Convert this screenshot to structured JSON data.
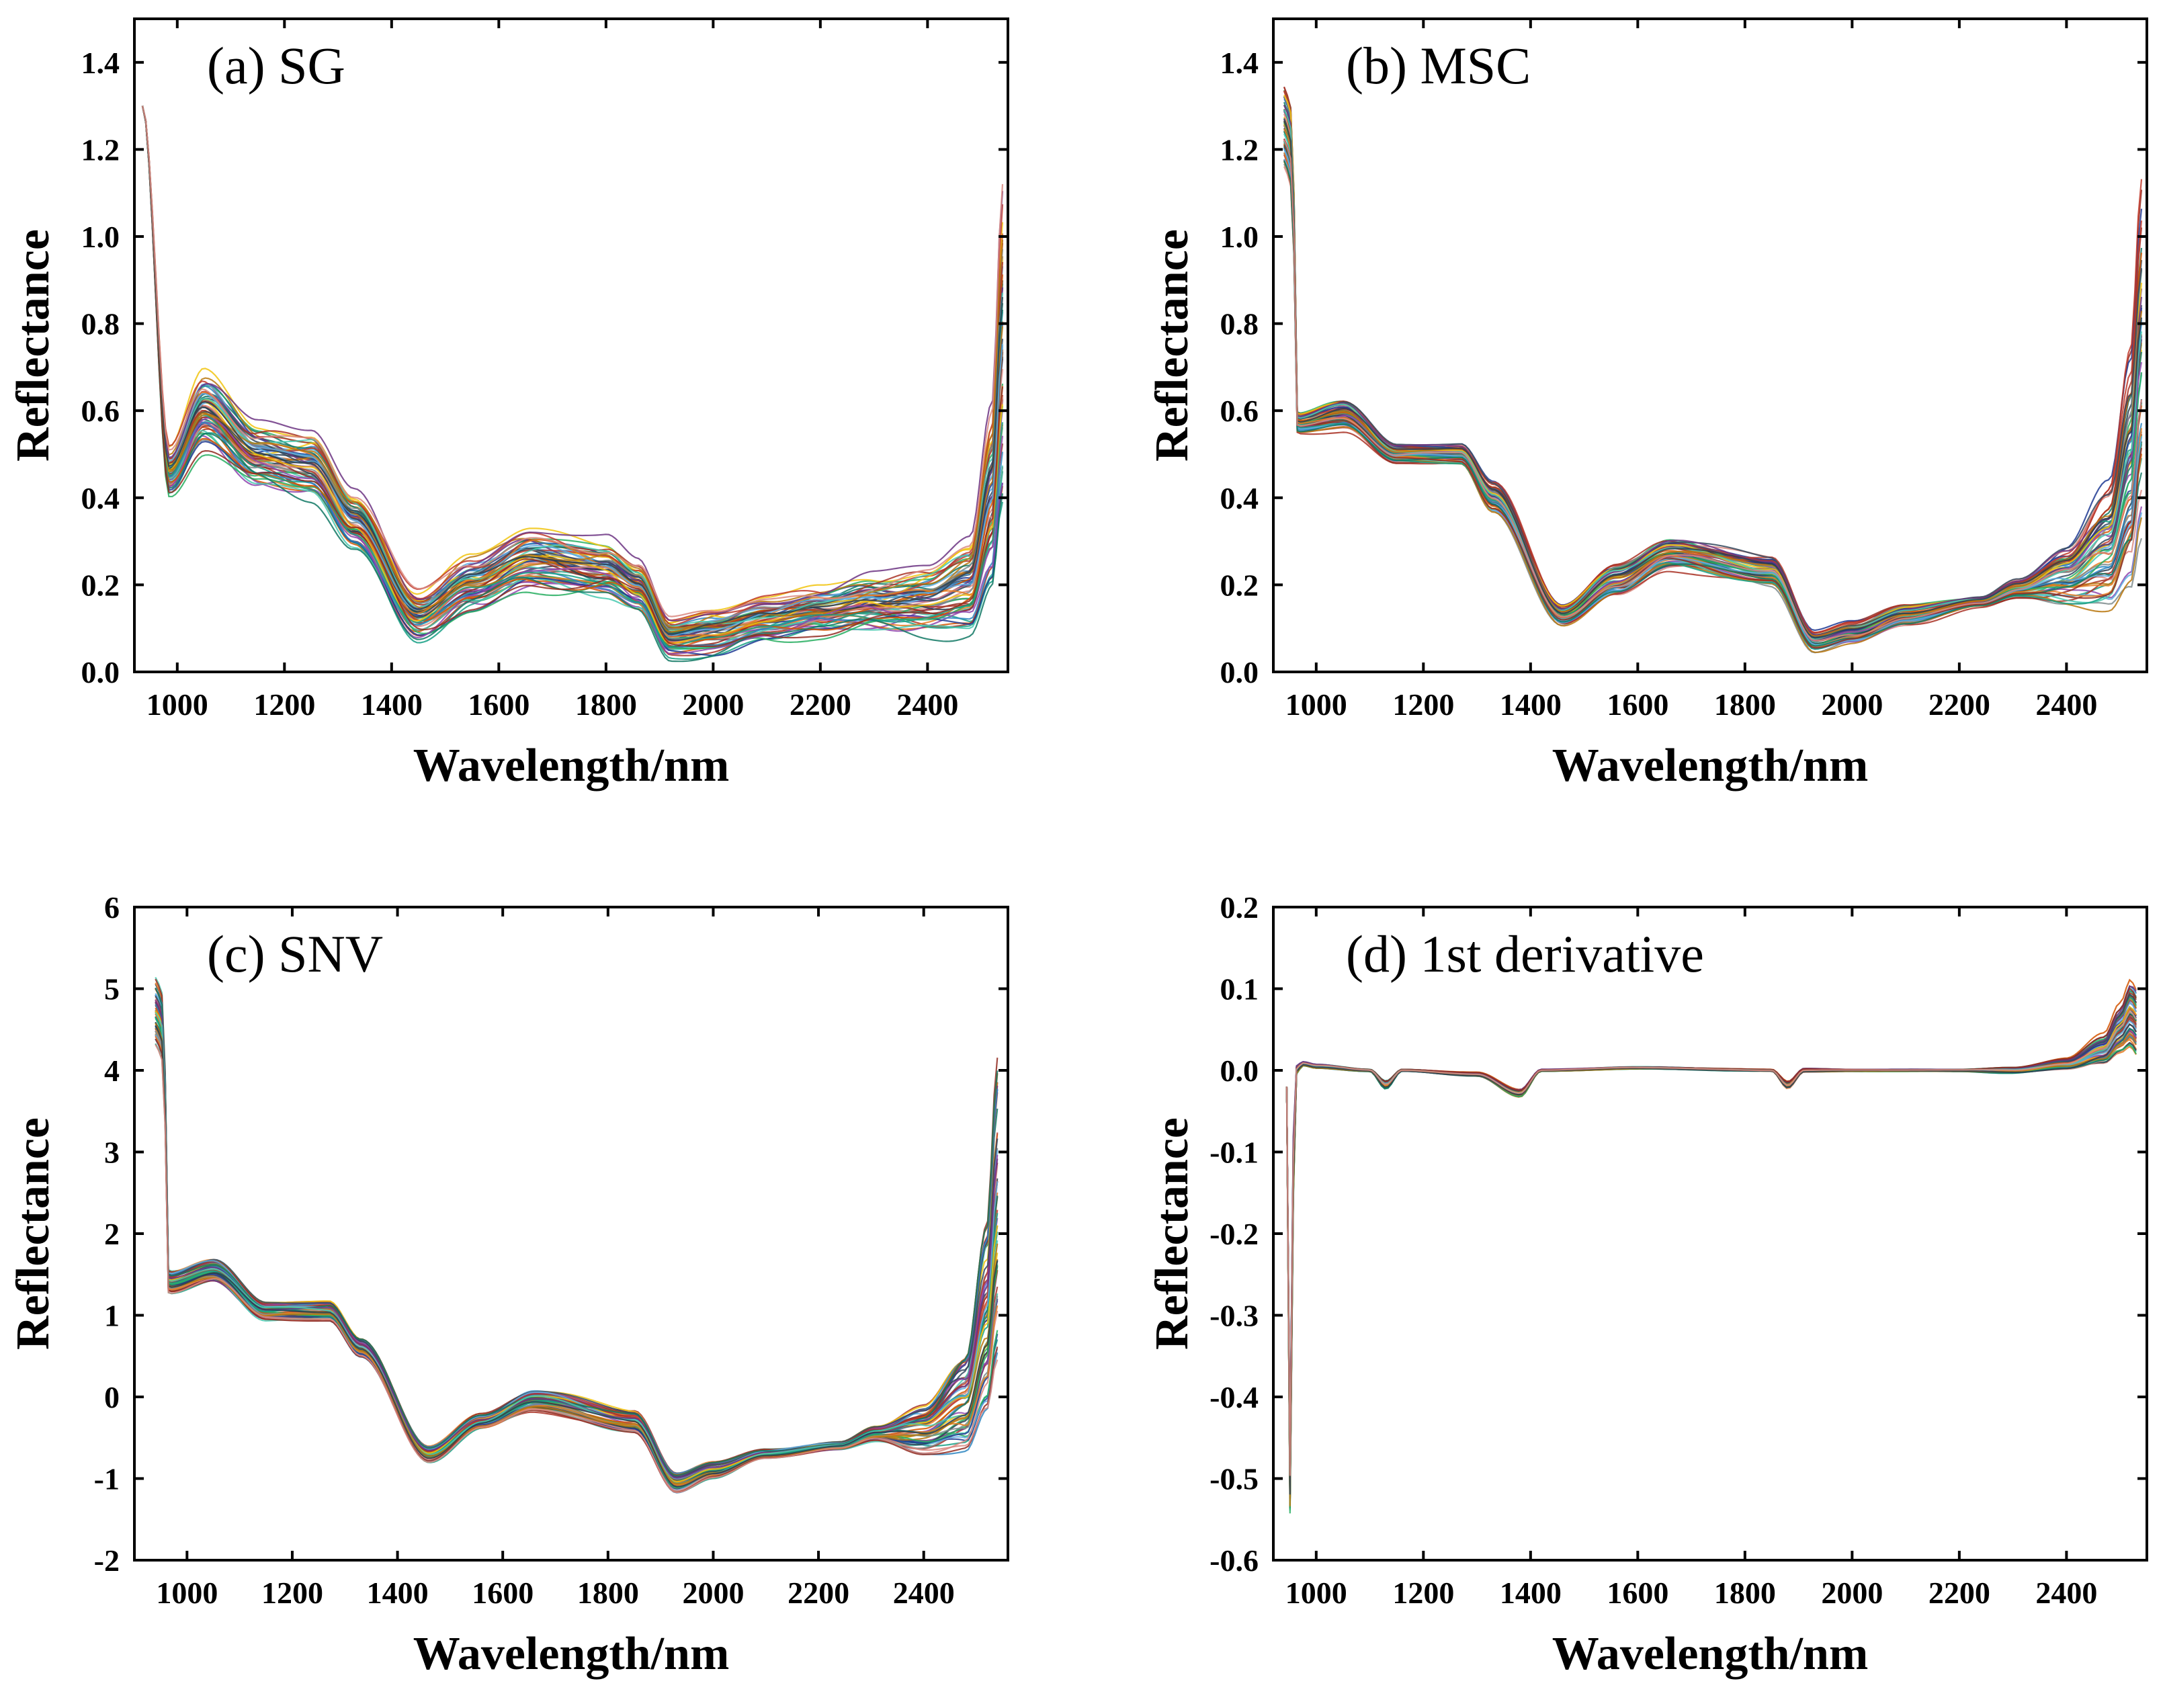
{
  "palette": [
    "#1f3a93",
    "#c0392b",
    "#2e86c1",
    "#27ae60",
    "#8e44ad",
    "#d35400",
    "#16a085",
    "#7f8c8d",
    "#a93226",
    "#f1c40f",
    "#34495e",
    "#e67e22",
    "#5dade2",
    "#117864",
    "#6c3483",
    "#922b21",
    "#48c9b0",
    "#b9770e",
    "#2c3e50",
    "#d98880"
  ],
  "chart_data": [
    {
      "id": "a",
      "type": "line",
      "title": "(a) SG",
      "xlabel": "Wavelength/nm",
      "ylabel": "Reflectance",
      "xlim": [
        920,
        2550
      ],
      "ylim": [
        0.0,
        1.5
      ],
      "xticks": [
        1000,
        1200,
        1400,
        1600,
        1800,
        2000,
        2200,
        2400
      ],
      "yticks": [
        0.0,
        0.2,
        0.4,
        0.6,
        0.8,
        1.0,
        1.2,
        1.4
      ],
      "ytick_labels": [
        "0.0",
        "0.2",
        "0.4",
        "0.6",
        "0.8",
        "1.0",
        "1.2",
        "1.4"
      ],
      "grid": false,
      "n_spectra": 60,
      "x": [
        935,
        985,
        1050,
        1150,
        1250,
        1330,
        1450,
        1550,
        1660,
        1800,
        1860,
        1920,
        2000,
        2100,
        2200,
        2300,
        2400,
        2480,
        2520,
        2540
      ],
      "mean": [
        1.3,
        0.46,
        0.6,
        0.5,
        0.48,
        0.35,
        0.13,
        0.2,
        0.26,
        0.24,
        0.2,
        0.08,
        0.09,
        0.12,
        0.14,
        0.16,
        0.17,
        0.2,
        0.4,
        0.75
      ],
      "spread": [
        0.0,
        0.05,
        0.08,
        0.07,
        0.07,
        0.06,
        0.05,
        0.06,
        0.07,
        0.06,
        0.05,
        0.04,
        0.05,
        0.05,
        0.05,
        0.06,
        0.07,
        0.1,
        0.2,
        0.35
      ]
    },
    {
      "id": "b",
      "type": "line",
      "title": "(b) MSC",
      "xlabel": "Wavelength/nm",
      "ylabel": "Reflectance",
      "xlim": [
        920,
        2550
      ],
      "ylim": [
        0.0,
        1.5
      ],
      "xticks": [
        1000,
        1200,
        1400,
        1600,
        1800,
        2000,
        2200,
        2400
      ],
      "yticks": [
        0.0,
        0.2,
        0.4,
        0.6,
        0.8,
        1.0,
        1.2,
        1.4
      ],
      "ytick_labels": [
        "0.0",
        "0.2",
        "0.4",
        "0.6",
        "0.8",
        "1.0",
        "1.2",
        "1.4"
      ],
      "grid": false,
      "n_spectra": 60,
      "x": [
        940,
        955,
        965,
        1050,
        1150,
        1270,
        1330,
        1460,
        1560,
        1660,
        1850,
        1930,
        2000,
        2100,
        2240,
        2310,
        2400,
        2480,
        2520,
        2540
      ],
      "mean": [
        1.25,
        1.2,
        0.57,
        0.59,
        0.5,
        0.5,
        0.4,
        0.13,
        0.21,
        0.27,
        0.23,
        0.07,
        0.09,
        0.13,
        0.16,
        0.19,
        0.22,
        0.28,
        0.45,
        0.7
      ],
      "spread": [
        0.08,
        0.08,
        0.02,
        0.03,
        0.02,
        0.02,
        0.03,
        0.02,
        0.03,
        0.03,
        0.03,
        0.02,
        0.02,
        0.02,
        0.01,
        0.02,
        0.06,
        0.12,
        0.22,
        0.32
      ]
    },
    {
      "id": "c",
      "type": "line",
      "title": "(c) SNV",
      "xlabel": "Wavelength/nm",
      "ylabel": "Reflectance",
      "xlim": [
        900,
        2560
      ],
      "ylim": [
        -2,
        6
      ],
      "xticks": [
        1000,
        1200,
        1400,
        1600,
        1800,
        2000,
        2200,
        2400
      ],
      "yticks": [
        -2,
        -1,
        0,
        1,
        2,
        3,
        4,
        5,
        6
      ],
      "ytick_labels": [
        "-2",
        "-1",
        "0",
        "1",
        "2",
        "3",
        "4",
        "5",
        "6"
      ],
      "grid": false,
      "n_spectra": 60,
      "x": [
        940,
        955,
        965,
        1050,
        1150,
        1270,
        1330,
        1460,
        1560,
        1660,
        1850,
        1930,
        2000,
        2100,
        2240,
        2310,
        2400,
        2480,
        2520,
        2540
      ],
      "mean": [
        4.7,
        4.5,
        1.4,
        1.55,
        1.05,
        1.05,
        0.6,
        -0.7,
        -0.3,
        -0.05,
        -0.3,
        -1.05,
        -0.9,
        -0.7,
        -0.6,
        -0.45,
        -0.4,
        -0.1,
        0.9,
        2.2
      ],
      "spread": [
        0.35,
        0.35,
        0.12,
        0.12,
        0.1,
        0.1,
        0.1,
        0.08,
        0.08,
        0.12,
        0.12,
        0.1,
        0.08,
        0.05,
        0.04,
        0.08,
        0.25,
        0.5,
        1.0,
        1.6
      ]
    },
    {
      "id": "d",
      "type": "line",
      "title": "(d) 1st derivative",
      "xlabel": "Wavelength/nm",
      "ylabel": "Reflectance",
      "xlim": [
        920,
        2550
      ],
      "ylim": [
        -0.6,
        0.2
      ],
      "xticks": [
        1000,
        1200,
        1400,
        1600,
        1800,
        2000,
        2200,
        2400
      ],
      "yticks": [
        -0.6,
        -0.5,
        -0.4,
        -0.3,
        -0.2,
        -0.1,
        0.0,
        0.1,
        0.2
      ],
      "ytick_labels": [
        "-0.6",
        "-0.5",
        "-0.4",
        "-0.3",
        "-0.2",
        "-0.1",
        "0.0",
        "0.1",
        "0.2"
      ],
      "grid": false,
      "n_spectra": 60,
      "x": [
        945,
        952,
        958,
        962,
        975,
        1000,
        1100,
        1130,
        1160,
        1300,
        1380,
        1420,
        1600,
        1850,
        1880,
        1910,
        2000,
        2200,
        2300,
        2400,
        2470,
        2500,
        2520,
        2530
      ],
      "mean": [
        -0.02,
        -0.53,
        -0.1,
        0.0,
        0.008,
        0.005,
        0.0,
        -0.018,
        0.0,
        -0.005,
        -0.028,
        0.0,
        0.003,
        0.0,
        -0.018,
        0.0,
        0.0,
        0.0,
        0.0,
        0.008,
        0.025,
        0.05,
        0.07,
        0.06
      ],
      "spread": [
        0.0,
        0.03,
        0.03,
        0.004,
        0.002,
        0.002,
        0.001,
        0.004,
        0.001,
        0.002,
        0.004,
        0.001,
        0.001,
        0.001,
        0.004,
        0.002,
        0.001,
        0.001,
        0.003,
        0.006,
        0.015,
        0.025,
        0.035,
        0.035
      ]
    }
  ]
}
